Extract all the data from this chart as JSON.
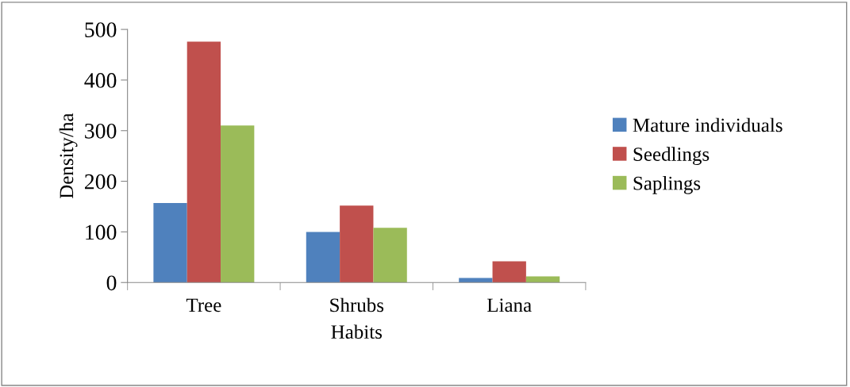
{
  "chart_data": {
    "type": "bar",
    "xlabel": "Habits",
    "ylabel": "Density/ha",
    "categories": [
      "Tree",
      "Shrubs",
      "Liana"
    ],
    "series": [
      {
        "name": "Mature individuals",
        "color": "#4f81bd",
        "values": [
          157,
          100,
          9
        ]
      },
      {
        "name": "Seedlings",
        "color": "#c0504d",
        "values": [
          476,
          152,
          42
        ]
      },
      {
        "name": "Saplings",
        "color": "#9bbb59",
        "values": [
          310,
          108,
          12
        ]
      }
    ],
    "ylim": [
      0,
      500
    ],
    "yticks": [
      0,
      100,
      200,
      300,
      400,
      500
    ],
    "grid": false,
    "legend": "right"
  }
}
